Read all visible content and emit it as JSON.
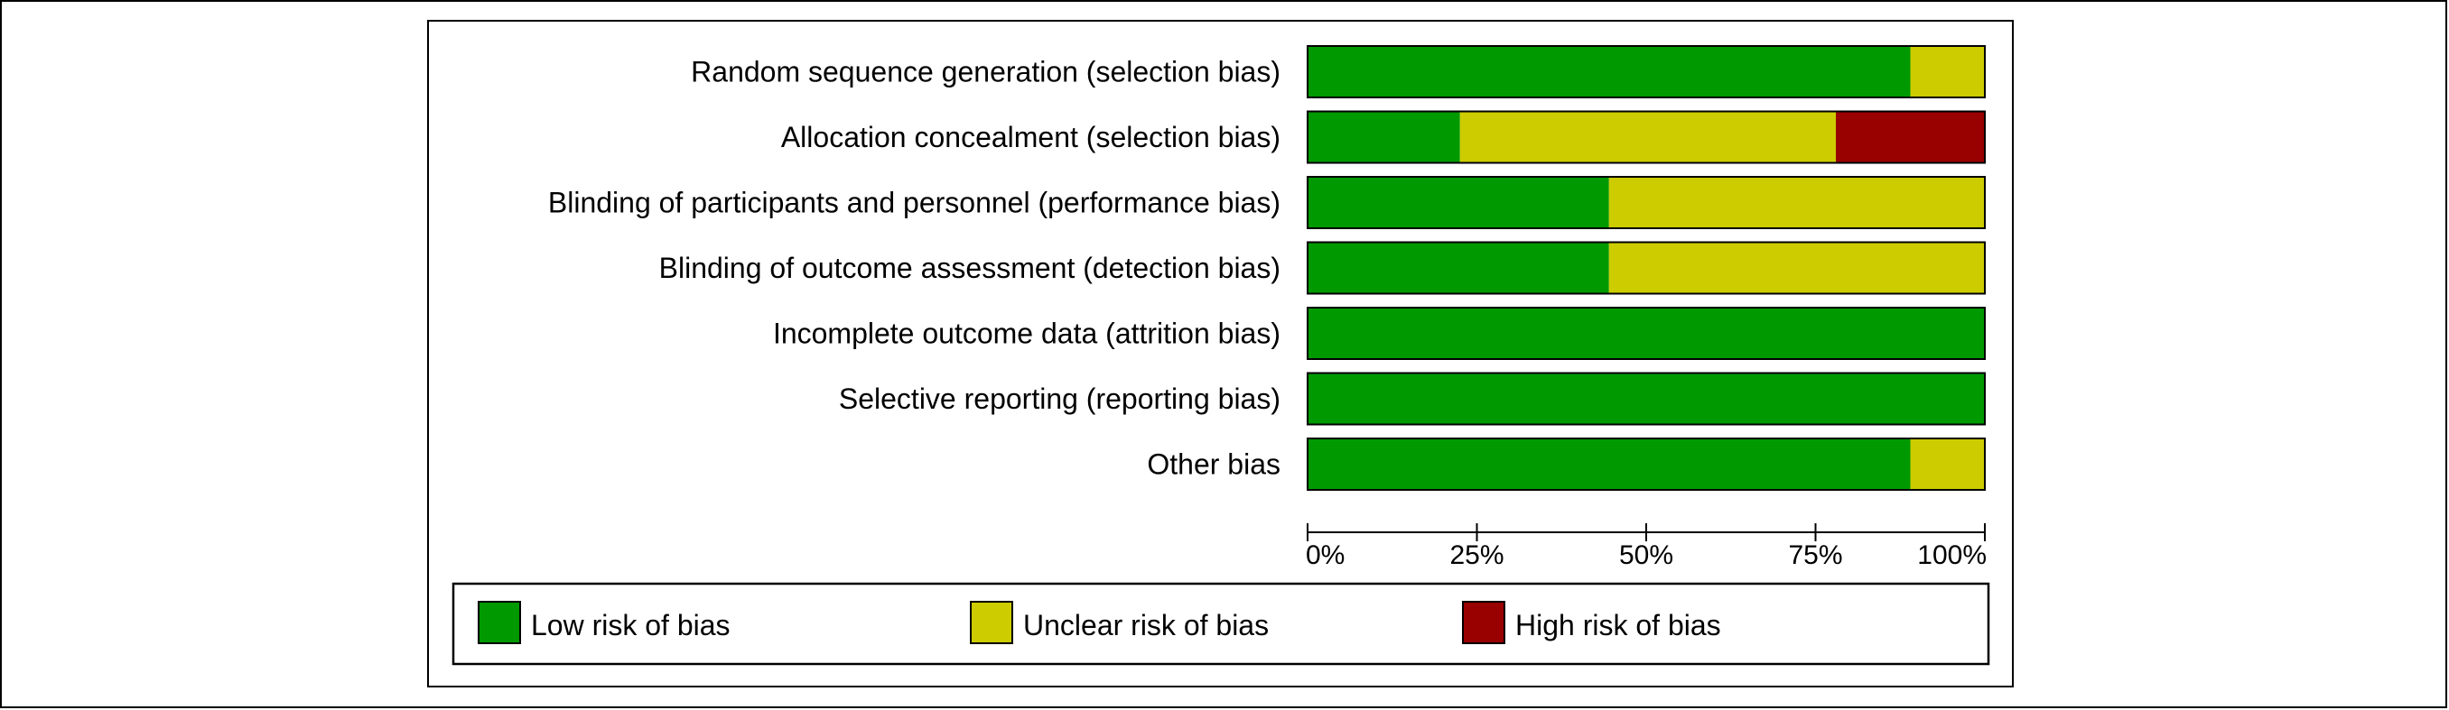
{
  "chart_data": {
    "type": "bar",
    "stacked": true,
    "orientation": "horizontal",
    "categories": [
      "Random sequence generation (selection bias)",
      "Allocation concealment (selection bias)",
      "Blinding of participants and personnel (performance bias)",
      "Blinding of outcome assessment (detection bias)",
      "Incomplete outcome data (attrition bias)",
      "Selective reporting (reporting bias)",
      "Other bias"
    ],
    "series": [
      {
        "name": "Low risk of bias",
        "color": "#009900",
        "values": [
          89,
          22.5,
          44.5,
          44.5,
          100,
          100,
          89
        ]
      },
      {
        "name": "Unclear risk of bias",
        "color": "#cccc00",
        "values": [
          11,
          55.5,
          55.5,
          55.5,
          0,
          0,
          11
        ]
      },
      {
        "name": "High risk of bias",
        "color": "#990000",
        "values": [
          0,
          22,
          0,
          0,
          0,
          0,
          0
        ]
      }
    ],
    "xlim": [
      0,
      100
    ],
    "xticks": [
      "0%",
      "25%",
      "50%",
      "75%",
      "100%"
    ],
    "legend": "bottom",
    "grid": false
  }
}
